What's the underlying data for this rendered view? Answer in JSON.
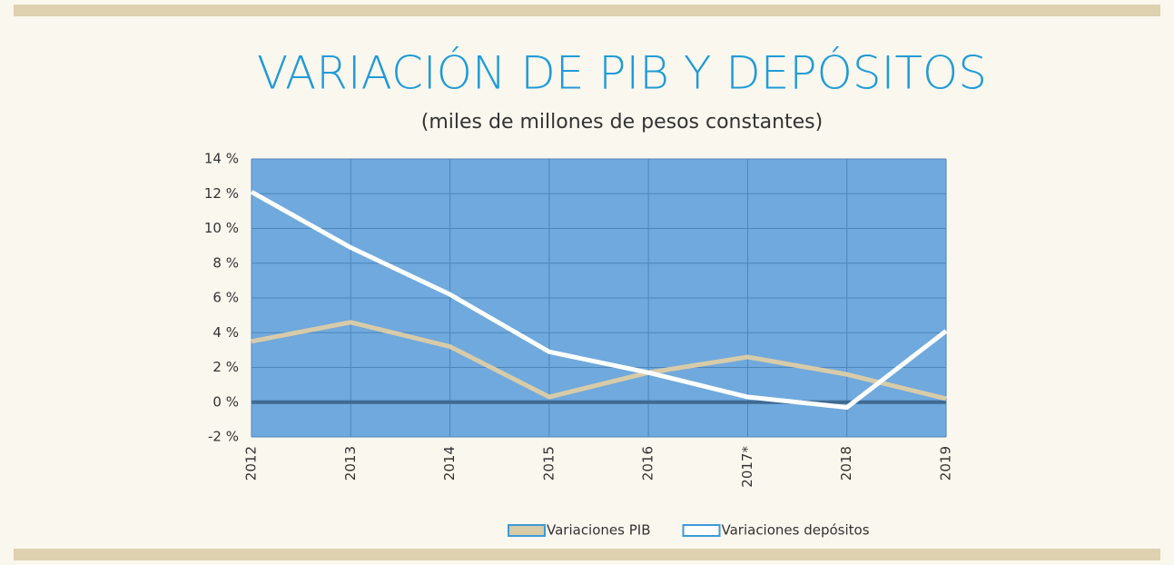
{
  "chart_data": {
    "type": "line",
    "title": "VARIACIÓN DE PIB Y DEPÓSITOS",
    "subtitle": "(miles de millones de pesos constantes)",
    "categories": [
      "2012",
      "2013",
      "2014",
      "2015",
      "2016",
      "2017*",
      "2018",
      "2019"
    ],
    "series": [
      {
        "name": "Variaciones PIB",
        "color": "#d8cba8",
        "values": [
          3.5,
          4.6,
          3.2,
          0.3,
          1.7,
          2.6,
          1.6,
          0.2
        ]
      },
      {
        "name": "Variaciones depósitos",
        "color": "#ffffff",
        "values": [
          12.1,
          8.9,
          6.2,
          2.9,
          1.7,
          0.3,
          -0.3,
          4.1
        ]
      }
    ],
    "ylim": [
      -2,
      14
    ],
    "yticks": [
      {
        "value": -2,
        "label": "-2 %"
      },
      {
        "value": 0,
        "label": "0 %"
      },
      {
        "value": 2,
        "label": "2 %"
      },
      {
        "value": 4,
        "label": "4 %"
      },
      {
        "value": 6,
        "label": "6 %"
      },
      {
        "value": 8,
        "label": "8 %"
      },
      {
        "value": 10,
        "label": "10 %"
      },
      {
        "value": 12,
        "label": "12 %"
      },
      {
        "value": 14,
        "label": "14 %"
      }
    ],
    "grid": true,
    "legend": "bottom"
  }
}
